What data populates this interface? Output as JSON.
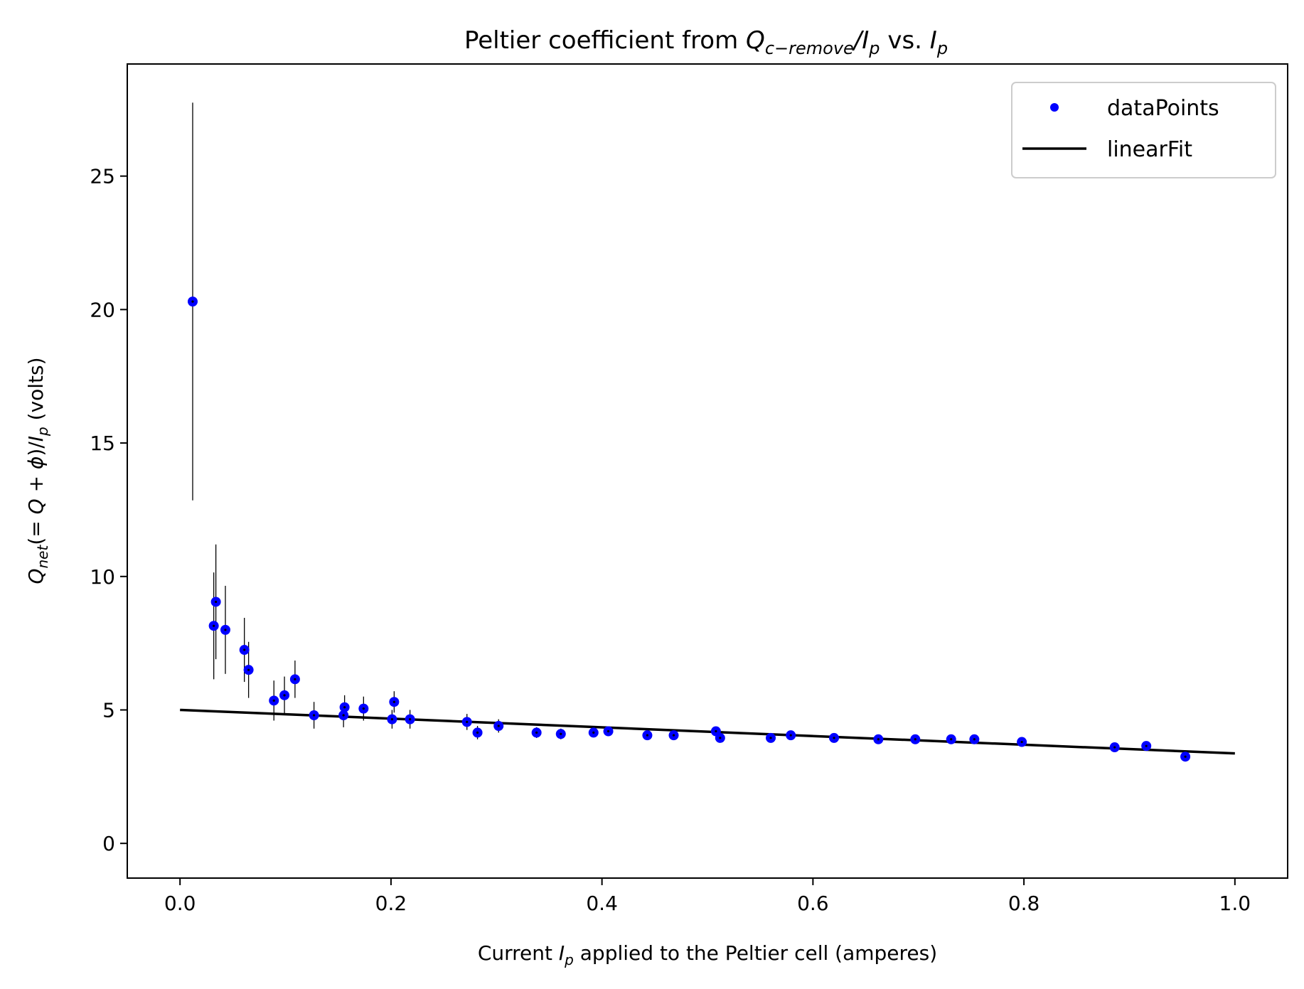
{
  "chart_data": {
    "type": "scatter",
    "title": {
      "prefix": "Peltier coefficient from ",
      "q": "Q",
      "q_sub": "c−remove",
      "slash": "/",
      "i": "I",
      "i_sub": "p",
      "mid": " vs. ",
      "i2": "I",
      "i2_sub": "p"
    },
    "xlabel": {
      "prefix": "Current ",
      "i": "I",
      "i_sub": "p",
      "suffix": " applied to the Peltier cell (amperes)"
    },
    "ylabel": {
      "q": "Q",
      "q_sub": "net",
      "open": "(",
      "eq": "= ",
      "q2": "Q",
      "plus": " + ",
      "phi": "ϕ",
      "close": ")/",
      "i": "I",
      "i_sub": "p",
      "suffix": " (volts)"
    },
    "xlim": [
      -0.05,
      1.05
    ],
    "ylim": [
      -1.3,
      29.2
    ],
    "x_ticks": [
      0.0,
      0.2,
      0.4,
      0.6,
      0.8,
      1.0
    ],
    "x_tick_labels": [
      "0.0",
      "0.2",
      "0.4",
      "0.6",
      "0.8",
      "1.0"
    ],
    "y_ticks": [
      0,
      5,
      10,
      15,
      20,
      25
    ],
    "y_tick_labels": [
      "0",
      "5",
      "10",
      "15",
      "20",
      "25"
    ],
    "grid": false,
    "legend_position": "top-right",
    "series": [
      {
        "name": "dataPoints",
        "type": "scatter",
        "color": "#0000ff",
        "points": [
          {
            "x": 0.012,
            "y": 20.3,
            "err": 7.45
          },
          {
            "x": 0.032,
            "y": 8.15,
            "err": 2.0
          },
          {
            "x": 0.034,
            "y": 9.05,
            "err": 2.15
          },
          {
            "x": 0.043,
            "y": 8.0,
            "err": 1.65
          },
          {
            "x": 0.061,
            "y": 7.25,
            "err": 1.2
          },
          {
            "x": 0.065,
            "y": 6.5,
            "err": 1.05
          },
          {
            "x": 0.089,
            "y": 5.35,
            "err": 0.75
          },
          {
            "x": 0.099,
            "y": 5.55,
            "err": 0.7
          },
          {
            "x": 0.109,
            "y": 6.15,
            "err": 0.7
          },
          {
            "x": 0.127,
            "y": 4.8,
            "err": 0.5
          },
          {
            "x": 0.155,
            "y": 4.8,
            "err": 0.45
          },
          {
            "x": 0.156,
            "y": 5.1,
            "err": 0.45
          },
          {
            "x": 0.174,
            "y": 5.05,
            "err": 0.45
          },
          {
            "x": 0.201,
            "y": 4.65,
            "err": 0.35
          },
          {
            "x": 0.203,
            "y": 5.3,
            "err": 0.4
          },
          {
            "x": 0.218,
            "y": 4.65,
            "err": 0.35
          },
          {
            "x": 0.272,
            "y": 4.55,
            "err": 0.3
          },
          {
            "x": 0.282,
            "y": 4.15,
            "err": 0.25
          },
          {
            "x": 0.302,
            "y": 4.4,
            "err": 0.25
          },
          {
            "x": 0.338,
            "y": 4.15,
            "err": 0.2
          },
          {
            "x": 0.361,
            "y": 4.1,
            "err": 0.2
          },
          {
            "x": 0.392,
            "y": 4.15,
            "err": 0.15
          },
          {
            "x": 0.406,
            "y": 4.2,
            "err": 0.15
          },
          {
            "x": 0.443,
            "y": 4.05,
            "err": 0.15
          },
          {
            "x": 0.468,
            "y": 4.05,
            "err": 0.12
          },
          {
            "x": 0.508,
            "y": 4.2,
            "err": 0.12
          },
          {
            "x": 0.512,
            "y": 3.95,
            "err": 0.12
          },
          {
            "x": 0.56,
            "y": 3.95,
            "err": 0.1
          },
          {
            "x": 0.579,
            "y": 4.05,
            "err": 0.1
          },
          {
            "x": 0.62,
            "y": 3.95,
            "err": 0.1
          },
          {
            "x": 0.662,
            "y": 3.9,
            "err": 0.1
          },
          {
            "x": 0.697,
            "y": 3.9,
            "err": 0.1
          },
          {
            "x": 0.731,
            "y": 3.9,
            "err": 0.1
          },
          {
            "x": 0.753,
            "y": 3.9,
            "err": 0.1
          },
          {
            "x": 0.798,
            "y": 3.8,
            "err": 0.1
          },
          {
            "x": 0.886,
            "y": 3.6,
            "err": 0.1
          },
          {
            "x": 0.916,
            "y": 3.65,
            "err": 0.1
          },
          {
            "x": 0.953,
            "y": 3.25,
            "err": 0.1
          }
        ]
      },
      {
        "name": "linearFit",
        "type": "line",
        "color": "#000000",
        "x": [
          0.0,
          1.0
        ],
        "y": [
          5.0,
          3.37
        ]
      }
    ]
  }
}
